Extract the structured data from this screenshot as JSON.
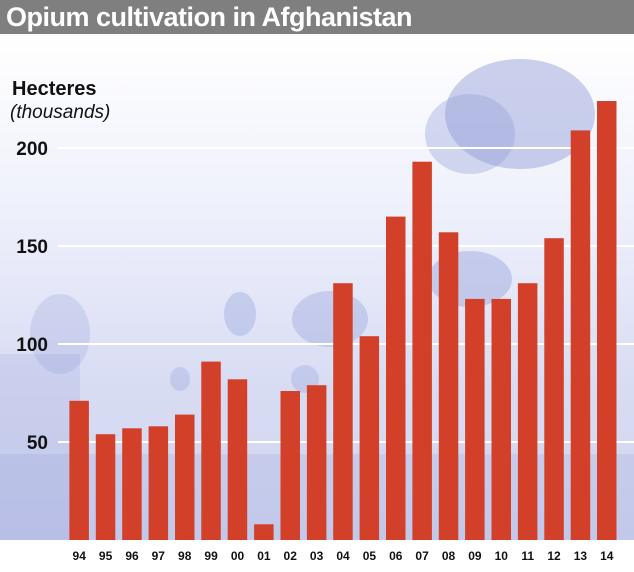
{
  "title": "Opium cultivation in Afghanistan",
  "colors": {
    "title_bar": "#7f7f7f",
    "bars": "#d2402a",
    "background_tint": "#d8dcf3"
  },
  "chart_data": {
    "type": "bar",
    "title": "Opium cultivation in Afghanistan",
    "ylabel": "Hecteres",
    "yunit": "(thousands)",
    "xlabel": "",
    "categories": [
      "94",
      "95",
      "96",
      "97",
      "98",
      "99",
      "00",
      "01",
      "02",
      "03",
      "04",
      "05",
      "06",
      "07",
      "08",
      "09",
      "10",
      "11",
      "12",
      "13",
      "14"
    ],
    "values": [
      71,
      54,
      57,
      58,
      64,
      91,
      82,
      8,
      76,
      79,
      131,
      104,
      165,
      193,
      157,
      123,
      123,
      131,
      154,
      209,
      224
    ],
    "yticks": [
      50,
      100,
      150,
      200
    ],
    "ylim": [
      0,
      240
    ],
    "grid": true,
    "legend": "none"
  }
}
